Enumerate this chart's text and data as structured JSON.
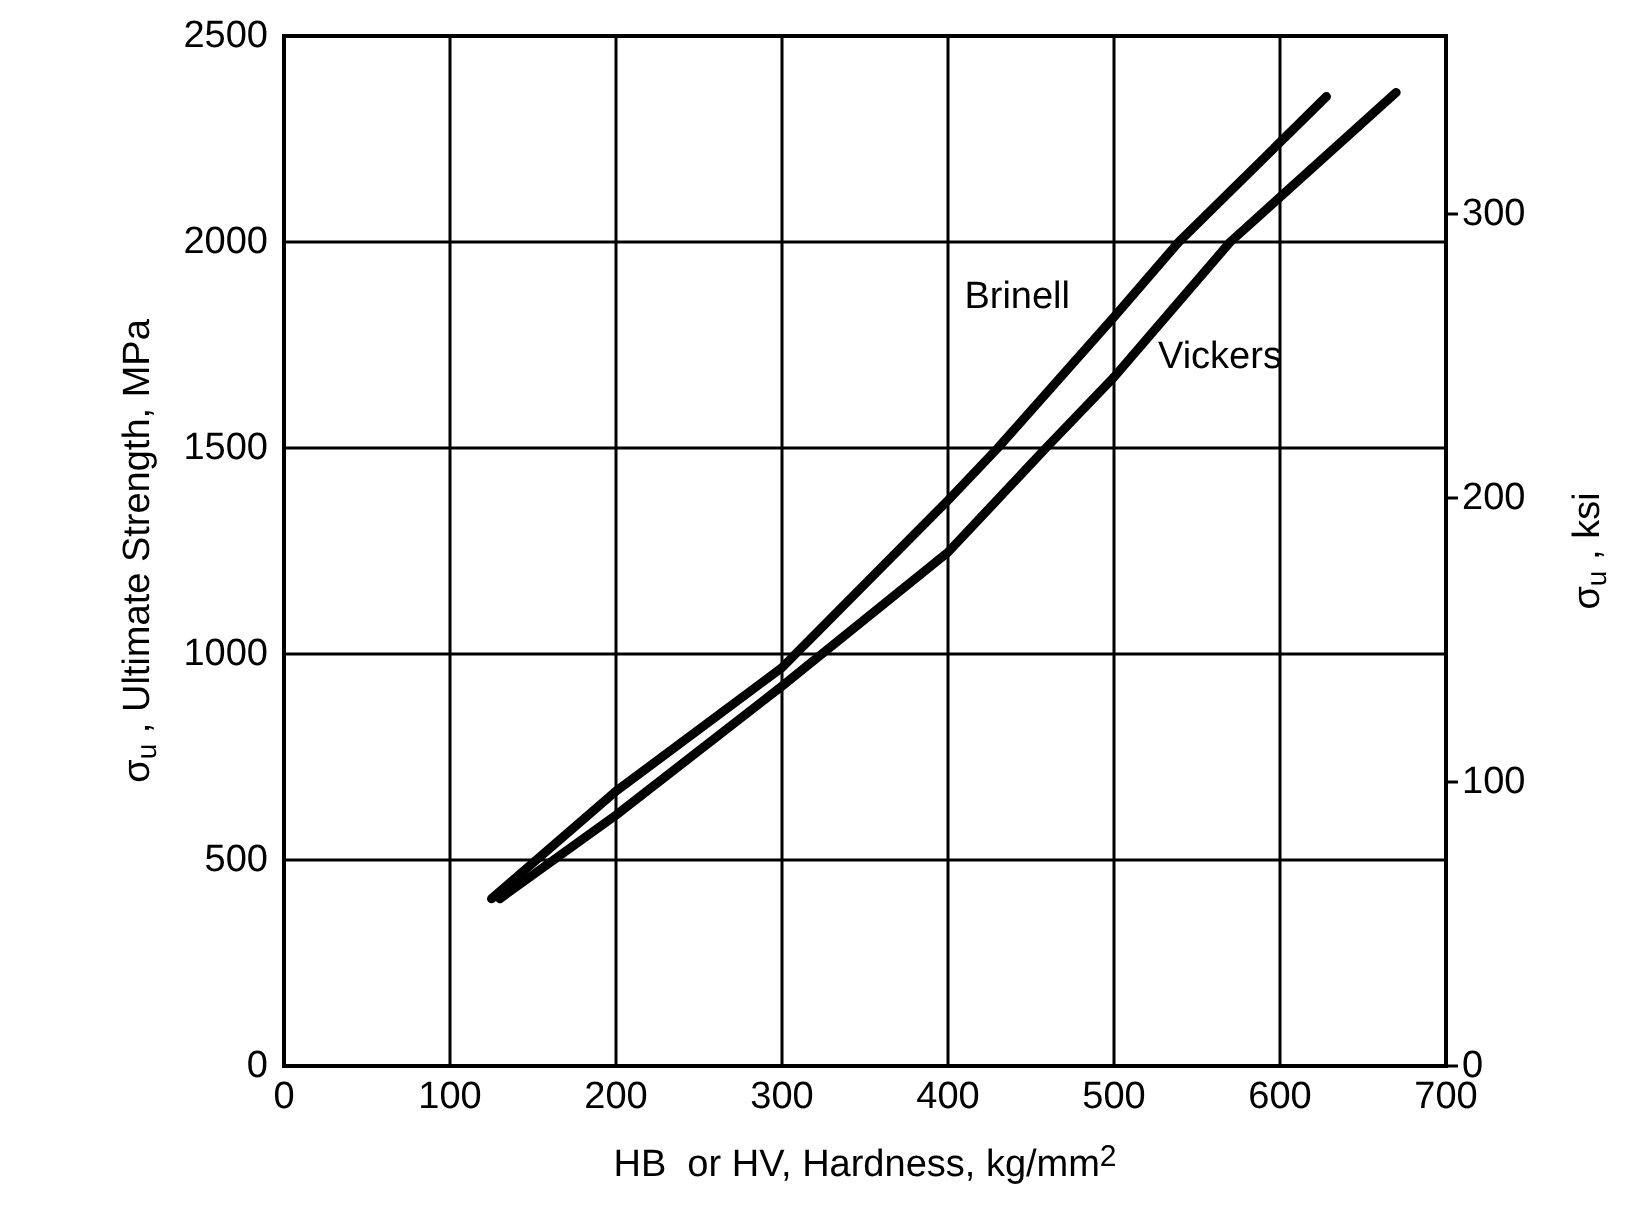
{
  "chart_data": {
    "type": "line",
    "xlabel": "HB  or HV, Hardness, kg/mm$^{2}$",
    "ylabel": "σ$_{u}$ , Ultimate Strength, MPa",
    "y2label": "σ$_{u}$ , ksi",
    "series": [
      {
        "name": "Brinell",
        "color": "#000000",
        "x": [
          125,
          200,
          300,
          400,
          430,
          500,
          539,
          628
        ],
        "values": [
          406,
          667,
          967,
          1373,
          1500,
          1818,
          2000,
          2353
        ]
      },
      {
        "name": "Vickers",
        "color": "#000000",
        "x": [
          130,
          200,
          300,
          400,
          459,
          500,
          570,
          670
        ],
        "values": [
          406,
          609,
          922,
          1247,
          1500,
          1672,
          2000,
          2363
        ]
      }
    ],
    "xlim": [
      0,
      700
    ],
    "xticks": [
      0,
      100,
      200,
      300,
      400,
      500,
      600,
      700
    ],
    "ylim": [
      0,
      2500
    ],
    "yticks": [
      0,
      500,
      1000,
      1500,
      2000,
      2500
    ],
    "y2lim": [
      0,
      362.6
    ],
    "y2ticks": [
      0,
      100,
      200,
      300
    ],
    "grid": true,
    "legend": false,
    "marker": "none",
    "line_style": "solid"
  }
}
